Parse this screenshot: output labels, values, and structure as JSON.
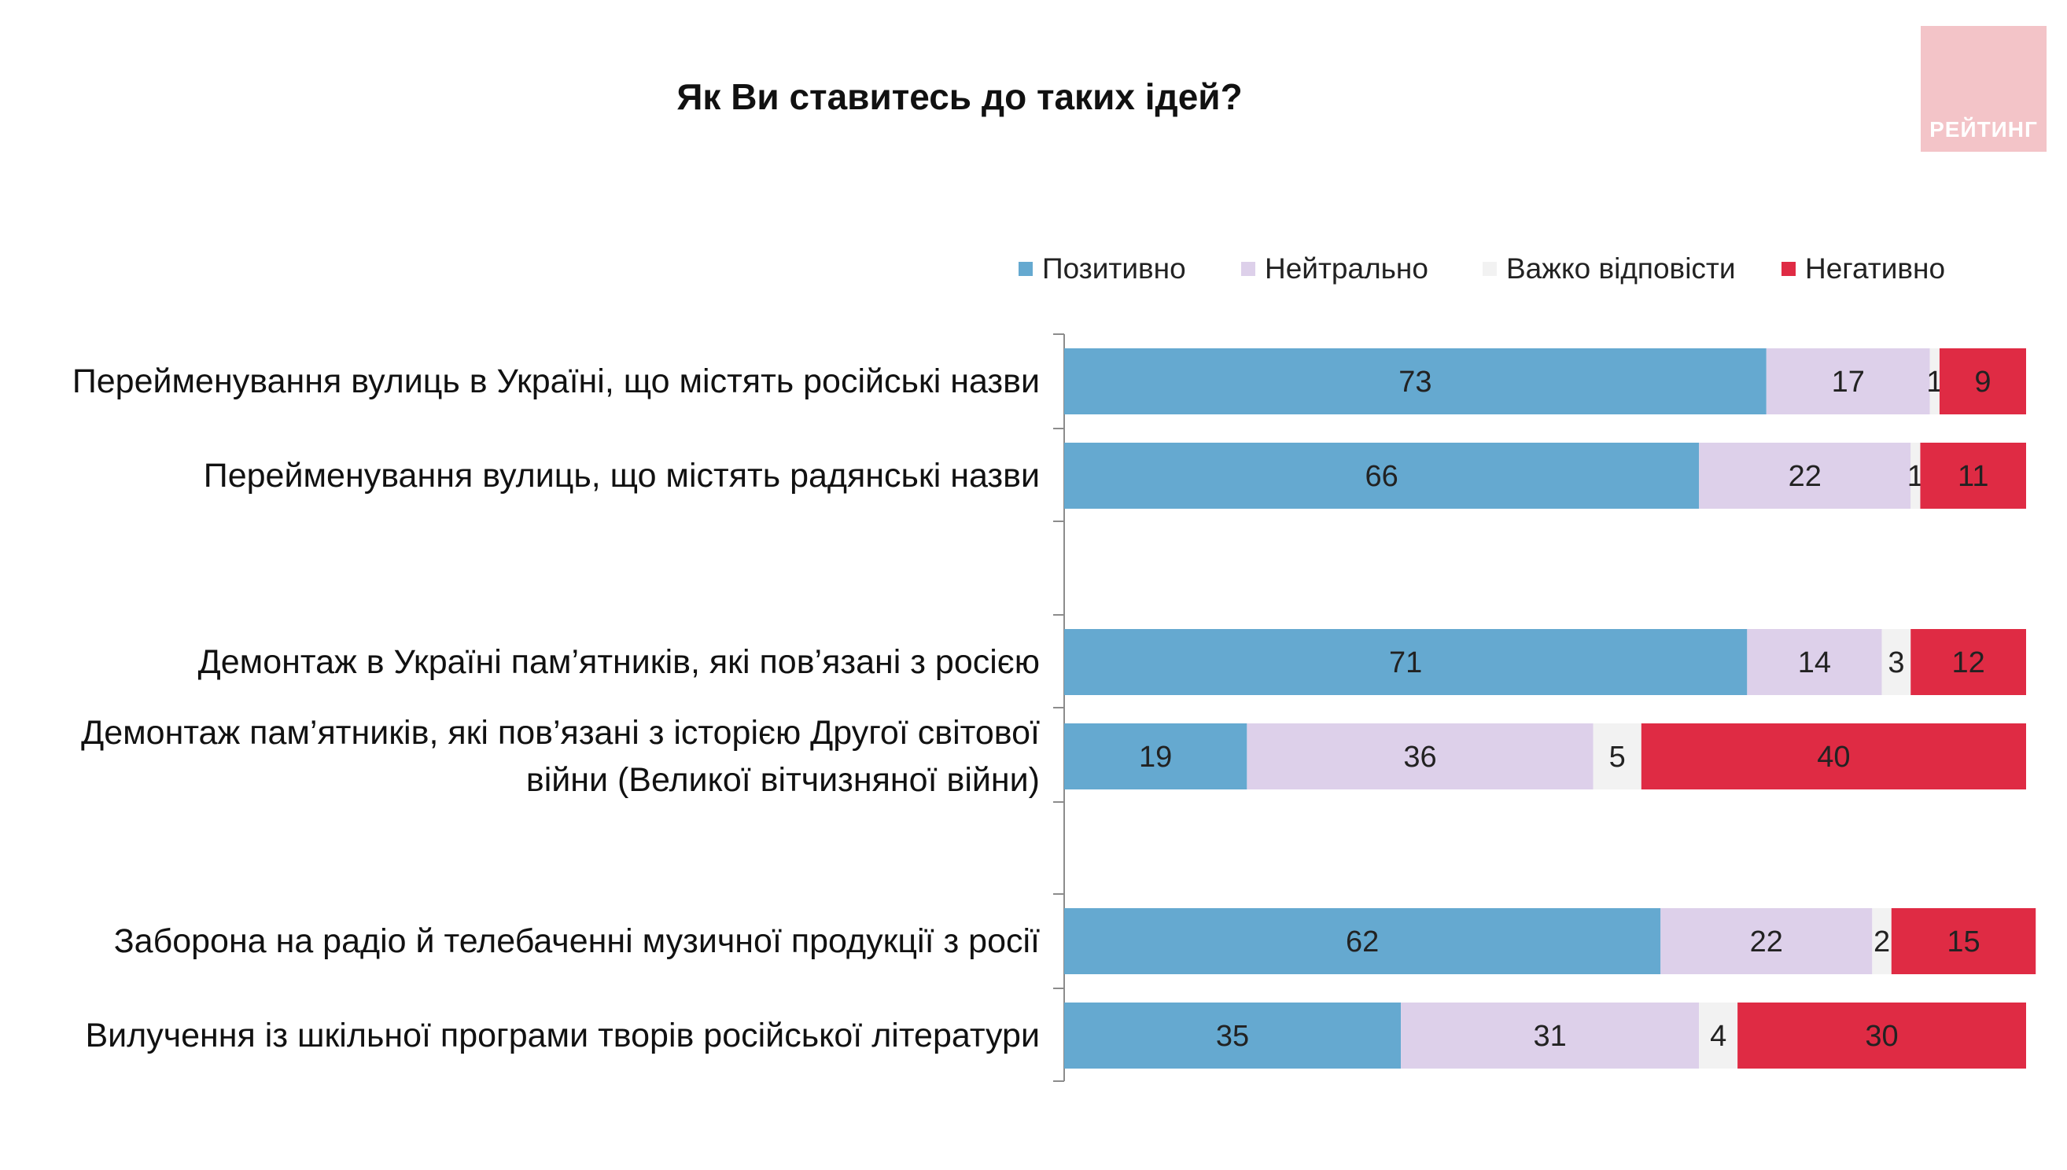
{
  "title": "Як Ви ставитесь до таких ідей?",
  "logo": {
    "text": "РЕЙТИНГ",
    "color": "#f3c4c8"
  },
  "chart_data": {
    "type": "bar",
    "orientation": "horizontal",
    "stacked": true,
    "xlim": [
      0,
      100
    ],
    "legend_position": "top",
    "categories": [
      "Перейменування вулиць в Україні, що містять російські назви",
      "Перейменування вулиць, що містять радянські назви",
      "Демонтаж в Україні пам’ятників, які пов’язані з росією",
      "Демонтаж пам’ятників, які пов’язані з історією Другої світової війни (Великої вітчизняної війни)",
      "Заборона на радіо й телебаченні музичної продукції з росії",
      "Вилучення із шкільної програми творів російської літератури"
    ],
    "category_lines": [
      [
        "Перейменування вулиць в Україні, що містять російські назви"
      ],
      [
        "Перейменування вулиць, що містять радянські назви"
      ],
      [
        "Демонтаж в Україні пам’ятників, які пов’язані з росією"
      ],
      [
        "Демонтаж пам’ятників, які пов’язані з історією Другої світової",
        "війни (Великої вітчизняної війни)"
      ],
      [
        "Заборона на радіо й телебаченні музичної продукції з росії"
      ],
      [
        "Вилучення із шкільної програми творів російської літератури"
      ]
    ],
    "series": [
      {
        "name": "Позитивно",
        "color": "#65a9d0",
        "values": [
          73,
          66,
          71,
          19,
          62,
          35
        ]
      },
      {
        "name": "Нейтрально",
        "color": "#ddd0ea",
        "values": [
          17,
          22,
          14,
          36,
          22,
          31
        ]
      },
      {
        "name": "Важко відповісти",
        "color": "#f2f2f2",
        "values": [
          1,
          1,
          3,
          5,
          2,
          4
        ]
      },
      {
        "name": "Негативно",
        "color": "#df2b44",
        "values": [
          9,
          11,
          12,
          40,
          15,
          30
        ]
      }
    ]
  }
}
